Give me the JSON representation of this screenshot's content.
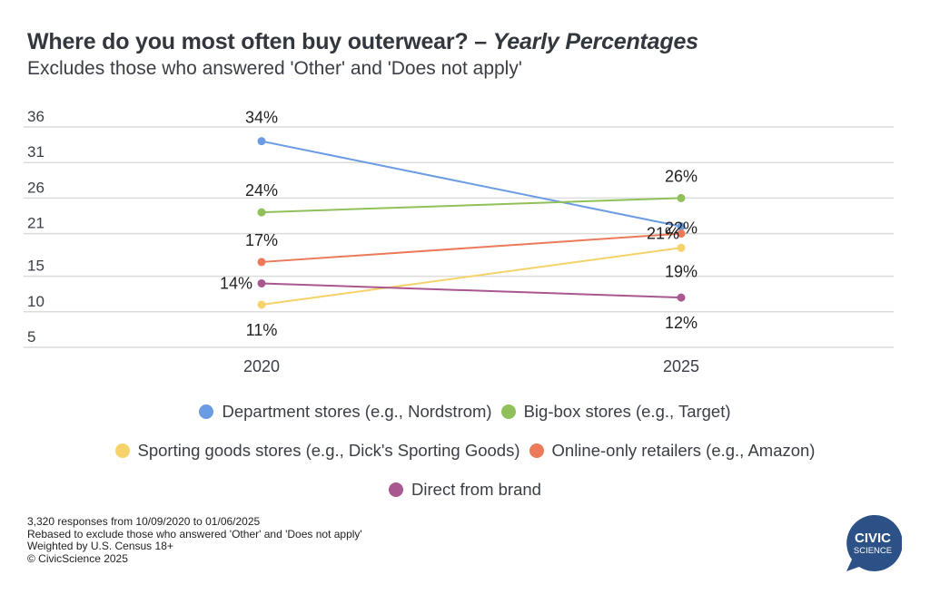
{
  "header": {
    "title_main": "Where do you most often buy outerwear? – ",
    "title_italic": "Yearly Percentages",
    "subtitle": "Excludes those who answered 'Other' and 'Does not apply'"
  },
  "chart_data": {
    "type": "line",
    "title": "Where do you most often buy outerwear? – Yearly Percentages",
    "subtitle": "Excludes those who answered 'Other' and 'Does not apply'",
    "xlabel": "",
    "ylabel": "",
    "x": [
      "2020",
      "2025"
    ],
    "ylim": [
      5,
      36
    ],
    "yticks": [
      "5",
      "10",
      "15",
      "21",
      "26",
      "31",
      "36"
    ],
    "grid": true,
    "legend_position": "bottom",
    "series": [
      {
        "name": "Department stores (e.g., Nordstrom)",
        "color": "#6b9be3",
        "values": [
          34,
          22
        ],
        "labels": [
          "34%",
          "22%"
        ]
      },
      {
        "name": "Big-box stores (e.g., Target)",
        "color": "#8fc05a",
        "values": [
          24,
          26
        ],
        "labels": [
          "24%",
          "26%"
        ]
      },
      {
        "name": "Sporting goods stores (e.g., Dick's Sporting Goods)",
        "color": "#f5d36a",
        "values": [
          11,
          19
        ],
        "labels": [
          "11%",
          "19%"
        ]
      },
      {
        "name": "Online-only retailers (e.g., Amazon)",
        "color": "#ec7a5a",
        "values": [
          17,
          21
        ],
        "labels": [
          "17%",
          "21%"
        ]
      },
      {
        "name": "Direct from brand",
        "color": "#a9578f",
        "values": [
          14,
          12
        ],
        "labels": [
          "14%",
          "12%"
        ]
      }
    ]
  },
  "footnotes": [
    "3,320 responses from 10/09/2020 to 01/06/2025",
    "Rebased to exclude those who answered 'Other' and 'Does not apply'",
    "Weighted by U.S. Census 18+",
    "© CivicScience 2025"
  ],
  "logo": {
    "line1": "CIVIC",
    "line2": "SCIENCE",
    "color": "#2c5186"
  }
}
